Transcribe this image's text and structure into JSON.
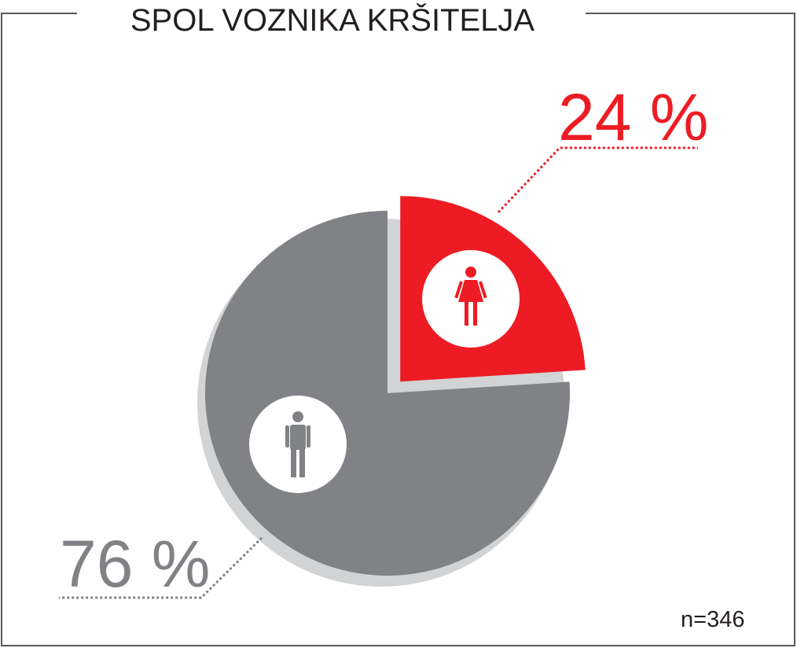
{
  "chart_data": {
    "type": "pie",
    "title": "SPOL VOZNIKA KRŠITELJA",
    "categories": [
      "Žene",
      "Muškarci"
    ],
    "values": [
      24,
      76
    ],
    "labels": [
      "24 %",
      "76 %"
    ],
    "note": "n=346",
    "colors": {
      "female": "#ed1c24",
      "male": "#808285",
      "shadow": "#d1d3d4",
      "frame": "#58595b",
      "text": "#231f20"
    },
    "icons": [
      "female-icon",
      "male-icon"
    ]
  }
}
